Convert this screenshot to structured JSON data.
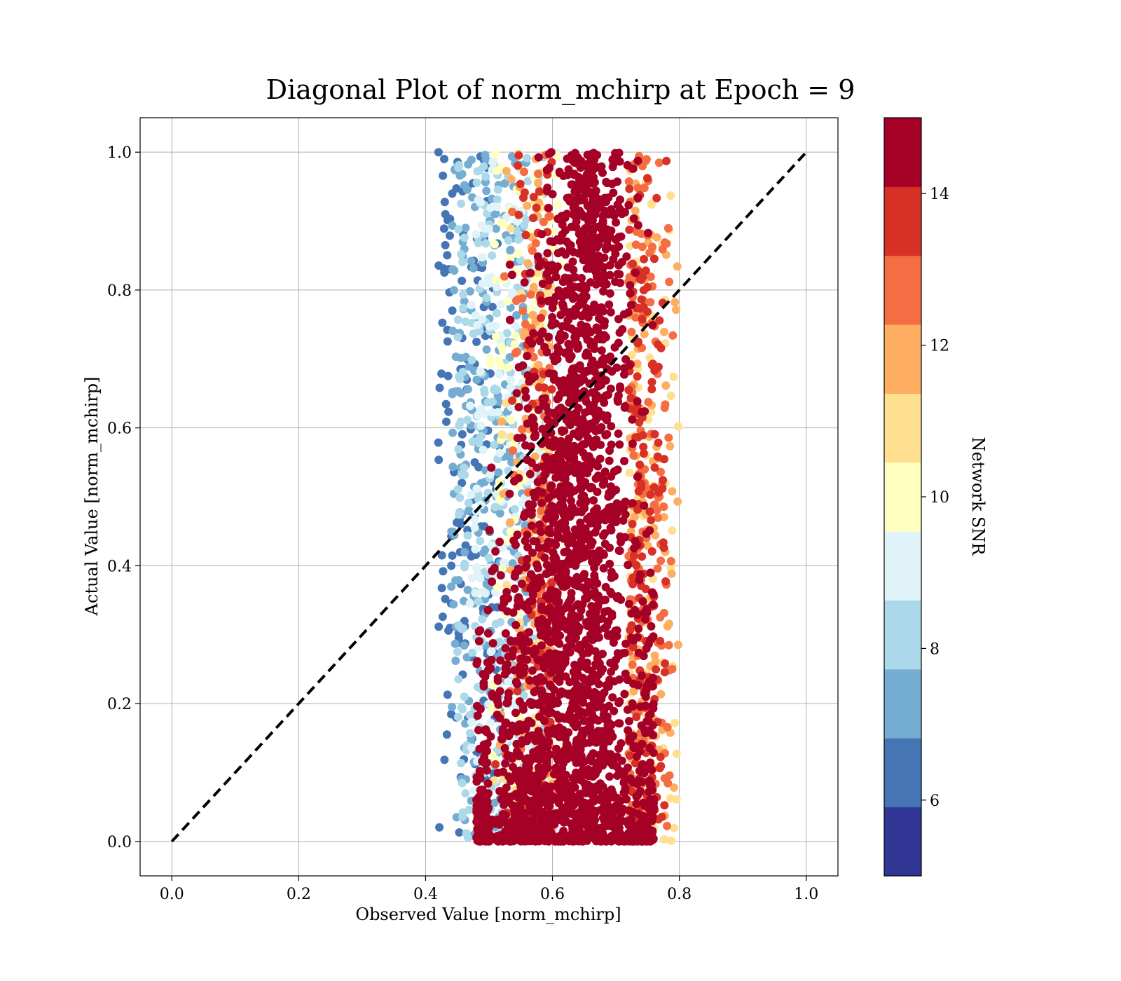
{
  "chart_data": {
    "type": "scatter",
    "title": "Diagonal Plot of norm_mchirp at Epoch = 9",
    "xlabel": "Observed Value [norm_mchirp]",
    "ylabel": "Actual Value [norm_mchirp]",
    "xlim": [
      -0.05,
      1.05
    ],
    "ylim": [
      -0.05,
      1.05
    ],
    "x_ticks": [
      "0.0",
      "0.2",
      "0.4",
      "0.6",
      "0.8",
      "1.0"
    ],
    "y_ticks": [
      "0.0",
      "0.2",
      "0.4",
      "0.6",
      "0.8",
      "1.0"
    ],
    "grid": true,
    "reference_line": {
      "x": [
        0,
        1
      ],
      "y": [
        0,
        1
      ],
      "style": "dashed",
      "color": "#000000"
    },
    "colorbar": {
      "label": "Network SNR",
      "range": [
        5,
        15
      ],
      "ticks": [
        "6",
        "8",
        "10",
        "12",
        "14"
      ],
      "colors": [
        "#313695",
        "#4575b4",
        "#74add1",
        "#abd9e9",
        "#e0f3f8",
        "#ffffbf",
        "#fee090",
        "#fdae61",
        "#f46d43",
        "#d73027",
        "#a50026"
      ]
    },
    "point_groups": [
      {
        "snr": 5.5,
        "color": "#313695",
        "x_range": [
          0.42,
          0.52
        ],
        "y_range": [
          0.0,
          1.0
        ],
        "approx_count": 160
      },
      {
        "snr": 7,
        "color": "#4575b4",
        "x_range": [
          0.44,
          0.56
        ],
        "y_range": [
          0.0,
          1.0
        ],
        "approx_count": 260
      },
      {
        "snr": 8,
        "color": "#74add1",
        "x_range": [
          0.45,
          0.59
        ],
        "y_range": [
          0.0,
          1.0
        ],
        "approx_count": 280
      },
      {
        "snr": 9,
        "color": "#abd9e9",
        "x_range": [
          0.47,
          0.61
        ],
        "y_range": [
          0.0,
          1.0
        ],
        "approx_count": 220
      },
      {
        "snr": 10,
        "color": "#e0f3f8",
        "x_range": [
          0.5,
          0.62
        ],
        "y_range": [
          0.0,
          1.0
        ],
        "approx_count": 150
      },
      {
        "snr": 11,
        "color": "#fee090",
        "x_range": [
          0.5,
          0.8
        ],
        "y_range": [
          0.0,
          1.0
        ],
        "approx_count": 170
      },
      {
        "snr": 12,
        "color": "#fdae61",
        "x_range": [
          0.5,
          0.8
        ],
        "y_range": [
          0.0,
          1.0
        ],
        "approx_count": 220
      },
      {
        "snr": 13,
        "color": "#f46d43",
        "x_range": [
          0.5,
          0.79
        ],
        "y_range": [
          0.0,
          1.0
        ],
        "approx_count": 300
      },
      {
        "snr": 14,
        "color": "#d73027",
        "x_range": [
          0.5,
          0.78
        ],
        "y_range": [
          0.0,
          1.0
        ],
        "approx_count": 260
      },
      {
        "snr": 15,
        "color": "#a50026",
        "x_range": [
          0.48,
          0.76
        ],
        "y_range": [
          0.0,
          1.0
        ],
        "approx_count": 2600,
        "note": "dense core, heaviest near y≈0 at x 0.5–0.7, centred near x≈0.66 at higher y"
      }
    ]
  }
}
